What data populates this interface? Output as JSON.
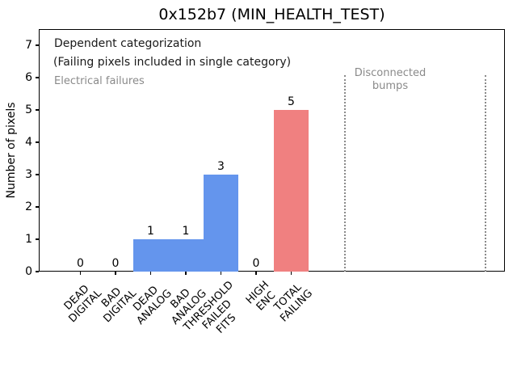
{
  "window": {
    "title": "0x152b7 (MIN_HEALTH_TEST)"
  },
  "chart_data": {
    "type": "bar",
    "title": "0x152b7 (MIN_HEALTH_TEST)",
    "xlabel": "",
    "ylabel": "Number of pixels",
    "ylim": [
      0,
      7.5
    ],
    "yticks": [
      "0",
      "1",
      "2",
      "3",
      "4",
      "5",
      "6",
      "7"
    ],
    "grid": false,
    "legend": "none",
    "categories": [
      "DEAD\nDIGITAL",
      "BAD\nDIGITAL",
      "DEAD\nANALOG",
      "BAD\nANALOG",
      "THRESHOLD\nFAILED\nFITS",
      "HIGH\nENC",
      "TOTAL\nFAILING"
    ],
    "values": [
      0,
      0,
      1,
      1,
      3,
      0,
      5
    ],
    "bar_value_labels": [
      "0",
      "0",
      "1",
      "1",
      "3",
      "0",
      "5"
    ],
    "bar_colors": [
      "#6495ed",
      "#6495ed",
      "#6495ed",
      "#6495ed",
      "#6495ed",
      "#6495ed",
      "#f08080"
    ],
    "colors": {
      "electrical_bars": "#6495ed",
      "total_failing_bar": "#f08080",
      "annotation_gray": "#8a8a8a",
      "separator_gray": "#8a8a8a",
      "text": "#000000"
    },
    "annotations": {
      "dependent_line1": "Dependent categorization",
      "dependent_line2": "(Failing pixels included in single category)",
      "electrical_group": "Electrical failures",
      "disconnected_line1": "Disconnected",
      "disconnected_line2": "bumps"
    },
    "separators": {
      "style": "dotted",
      "count": 2,
      "region_label": "Disconnected bumps"
    }
  }
}
